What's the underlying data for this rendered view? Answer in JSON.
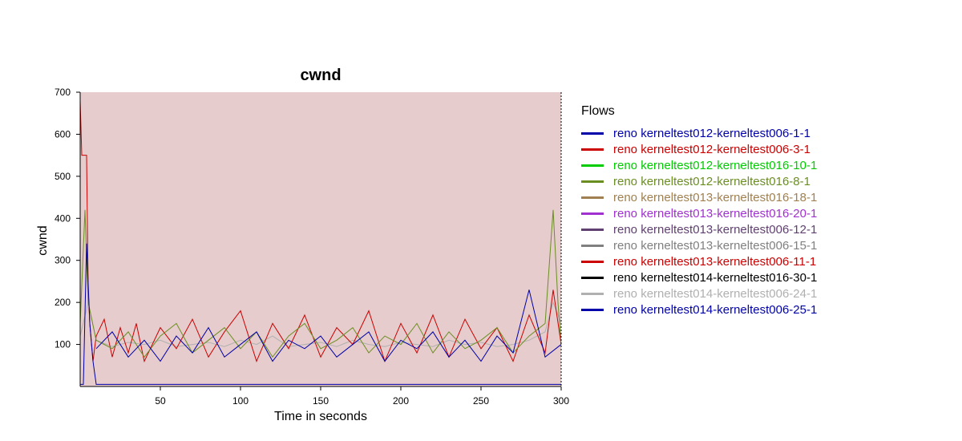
{
  "chart_data": {
    "type": "line",
    "title": "cwnd",
    "xlabel": "Time in seconds",
    "ylabel": "cwnd",
    "xlim": [
      0,
      300
    ],
    "ylim": [
      0,
      700
    ],
    "x_ticks": [
      50,
      100,
      150,
      200,
      250,
      300
    ],
    "y_ticks": [
      100,
      200,
      300,
      400,
      500,
      600,
      700
    ],
    "plot_background": "#e6cccc",
    "grid": false,
    "legend": {
      "title": "Flows",
      "placement": "right",
      "entries": [
        {
          "name": "reno kerneltest012-kerneltest006-1-1",
          "color": "#0000aa"
        },
        {
          "name": "reno kerneltest012-kerneltest006-3-1",
          "color": "#cc0000"
        },
        {
          "name": "reno kerneltest012-kerneltest016-10-1",
          "color": "#00cc00"
        },
        {
          "name": "reno kerneltest012-kerneltest016-8-1",
          "color": "#6b8e23"
        },
        {
          "name": "reno kerneltest013-kerneltest016-18-1",
          "color": "#a08050"
        },
        {
          "name": "reno kerneltest013-kerneltest016-20-1",
          "color": "#a030d0"
        },
        {
          "name": "reno kerneltest013-kerneltest006-12-1",
          "color": "#604070"
        },
        {
          "name": "reno kerneltest013-kerneltest006-15-1",
          "color": "#808080"
        },
        {
          "name": "reno kerneltest013-kerneltest006-11-1",
          "color": "#cc0000"
        },
        {
          "name": "reno kerneltest014-kerneltest016-30-1",
          "color": "#000000"
        },
        {
          "name": "reno kerneltest014-kerneltest006-24-1",
          "color": "#b0b0b0"
        },
        {
          "name": "reno kerneltest014-kerneltest006-25-1",
          "color": "#0000aa"
        }
      ]
    },
    "series": [
      {
        "name": "reno kerneltest014-kerneltest006-24-1",
        "color": "#b0b0b0",
        "x": [
          0,
          5,
          10,
          20,
          30,
          40,
          50,
          60,
          70,
          80,
          90,
          100,
          110,
          120,
          130,
          140,
          150,
          160,
          170,
          180,
          190,
          200,
          210,
          220,
          230,
          240,
          250,
          260,
          270,
          280,
          290,
          295,
          300
        ],
        "y": [
          120,
          200,
          110,
          95,
          105,
          100,
          110,
          95,
          100,
          105,
          95,
          110,
          100,
          120,
          95,
          100,
          105,
          95,
          110,
          100,
          95,
          105,
          100,
          95,
          110,
          100,
          105,
          95,
          100,
          110,
          130,
          200,
          150
        ]
      },
      {
        "name": "reno kerneltest012-kerneltest006-3-1",
        "color": "#cc0000",
        "x": [
          0,
          1,
          2,
          3,
          4,
          5,
          6,
          8,
          10,
          15,
          20,
          25,
          30,
          35,
          40,
          50,
          60,
          70,
          80,
          90,
          100,
          110,
          120,
          130,
          140,
          150,
          160,
          170,
          180,
          190,
          200,
          210,
          220,
          230,
          240,
          250,
          260,
          270,
          280,
          290,
          295,
          300
        ],
        "y": [
          680,
          550,
          550,
          550,
          550,
          230,
          150,
          60,
          120,
          160,
          70,
          140,
          80,
          150,
          60,
          140,
          90,
          160,
          70,
          130,
          180,
          60,
          150,
          90,
          170,
          70,
          140,
          100,
          180,
          60,
          150,
          80,
          170,
          70,
          160,
          90,
          140,
          60,
          170,
          80,
          230,
          100
        ]
      },
      {
        "name": "reno kerneltest012-kerneltest016-8-1",
        "color": "#6b8e23",
        "x": [
          0,
          3,
          5,
          10,
          20,
          30,
          40,
          50,
          60,
          70,
          80,
          90,
          100,
          110,
          120,
          130,
          140,
          150,
          160,
          170,
          180,
          190,
          200,
          210,
          220,
          230,
          240,
          250,
          260,
          270,
          280,
          290,
          295,
          298,
          300
        ],
        "y": [
          150,
          420,
          200,
          110,
          90,
          130,
          70,
          120,
          150,
          80,
          110,
          140,
          90,
          130,
          70,
          120,
          150,
          90,
          110,
          140,
          80,
          120,
          100,
          150,
          80,
          130,
          90,
          110,
          140,
          80,
          120,
          150,
          420,
          200,
          100
        ]
      },
      {
        "name": "reno kerneltest012-kerneltest006-1-1",
        "color": "#0000aa",
        "x": [
          0,
          2,
          4,
          6,
          8,
          10,
          20,
          30,
          40,
          50,
          60,
          70,
          80,
          90,
          100,
          110,
          120,
          130,
          140,
          150,
          160,
          170,
          180,
          190,
          200,
          210,
          220,
          230,
          240,
          250,
          260,
          270,
          280,
          290,
          300
        ],
        "y": [
          5,
          5,
          340,
          150,
          60,
          5,
          5,
          5,
          5,
          5,
          5,
          5,
          5,
          5,
          5,
          5,
          5,
          5,
          5,
          5,
          5,
          5,
          5,
          5,
          5,
          5,
          5,
          5,
          5,
          5,
          5,
          5,
          5,
          5,
          5
        ]
      },
      {
        "name": "reno kerneltest014-kerneltest006-25-1",
        "color": "#0000aa",
        "x": [
          10,
          20,
          30,
          40,
          50,
          60,
          70,
          80,
          90,
          100,
          110,
          120,
          130,
          140,
          150,
          160,
          170,
          180,
          190,
          200,
          210,
          220,
          230,
          240,
          250,
          260,
          270,
          280,
          290,
          300
        ],
        "y": [
          90,
          130,
          70,
          110,
          60,
          120,
          80,
          140,
          70,
          100,
          130,
          60,
          110,
          90,
          120,
          70,
          100,
          130,
          60,
          110,
          90,
          130,
          70,
          110,
          60,
          120,
          80,
          230,
          70,
          100
        ]
      }
    ]
  }
}
